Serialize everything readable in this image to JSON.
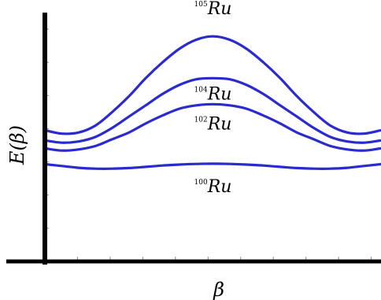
{
  "chart_data": {
    "type": "line",
    "xlabel": "β",
    "ylabel": "E(β)",
    "ylabel_prefix": "E(",
    "ylabel_var": "β",
    "ylabel_suffix": ")",
    "x_ticks": 10,
    "y_ticks": 7,
    "series": [
      {
        "name": "Ru",
        "mass": "105",
        "color": "#2a2acf",
        "x": [
          0,
          0.05,
          0.1,
          0.15,
          0.2,
          0.25,
          0.3,
          0.35,
          0.4,
          0.45,
          0.5,
          0.55,
          0.6,
          0.65,
          0.7,
          0.75,
          0.8,
          0.85,
          0.9,
          0.95,
          1
        ],
        "y": [
          0.58,
          0.565,
          0.57,
          0.6,
          0.66,
          0.73,
          0.81,
          0.88,
          0.94,
          0.98,
          0.995,
          0.98,
          0.94,
          0.88,
          0.81,
          0.73,
          0.66,
          0.6,
          0.57,
          0.565,
          0.58
        ]
      },
      {
        "name": "Ru",
        "mass": "104",
        "color": "#2a2acf",
        "x": [
          0,
          0.05,
          0.1,
          0.15,
          0.2,
          0.25,
          0.3,
          0.35,
          0.4,
          0.45,
          0.5,
          0.55,
          0.6,
          0.65,
          0.7,
          0.75,
          0.8,
          0.85,
          0.9,
          0.95,
          1
        ],
        "y": [
          0.535,
          0.525,
          0.53,
          0.55,
          0.59,
          0.64,
          0.69,
          0.74,
          0.78,
          0.805,
          0.81,
          0.805,
          0.78,
          0.74,
          0.69,
          0.64,
          0.59,
          0.55,
          0.53,
          0.525,
          0.535
        ]
      },
      {
        "name": "Ru",
        "mass": "102",
        "color": "#2a2acf",
        "x": [
          0,
          0.05,
          0.1,
          0.15,
          0.2,
          0.25,
          0.3,
          0.35,
          0.4,
          0.45,
          0.5,
          0.55,
          0.6,
          0.65,
          0.7,
          0.75,
          0.8,
          0.85,
          0.9,
          0.95,
          1
        ],
        "y": [
          0.5,
          0.49,
          0.495,
          0.51,
          0.54,
          0.57,
          0.61,
          0.645,
          0.675,
          0.69,
          0.695,
          0.69,
          0.675,
          0.645,
          0.61,
          0.57,
          0.54,
          0.51,
          0.495,
          0.49,
          0.5
        ]
      },
      {
        "name": "Ru",
        "mass": "100",
        "color": "#2a2acf",
        "x": [
          0,
          0.05,
          0.1,
          0.15,
          0.2,
          0.25,
          0.3,
          0.35,
          0.4,
          0.45,
          0.5,
          0.55,
          0.6,
          0.65,
          0.7,
          0.75,
          0.8,
          0.85,
          0.9,
          0.95,
          1
        ],
        "y": [
          0.43,
          0.422,
          0.414,
          0.41,
          0.41,
          0.413,
          0.418,
          0.424,
          0.428,
          0.431,
          0.432,
          0.431,
          0.428,
          0.424,
          0.418,
          0.413,
          0.41,
          0.41,
          0.414,
          0.422,
          0.43
        ]
      }
    ],
    "xlim": [
      0,
      1
    ],
    "ylim": [
      0,
      1.1
    ]
  }
}
